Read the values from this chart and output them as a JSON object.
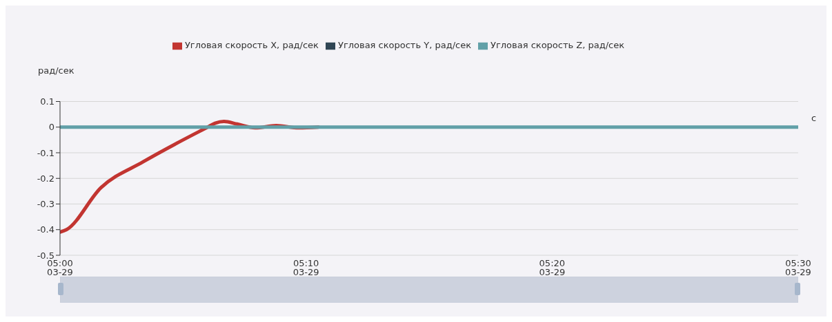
{
  "chart_data": {
    "type": "line",
    "xlabel": "с",
    "ylabel": "рад/сек",
    "x": [
      5,
      5.0044,
      5.0278,
      5.0561,
      5.0833,
      5.1,
      5.105,
      5.1111,
      5.12,
      5.1322,
      5.1464,
      5.1617,
      5.175,
      5.5
    ],
    "series": [
      {
        "name": "Угловая скорость X, рад/сек",
        "color": "#c23531",
        "values": [
          -0.41,
          -0.4,
          -0.236,
          -0.136,
          -0.05,
          0,
          0.015,
          0.022,
          0.012,
          -0.003,
          0.006,
          -0.003,
          0,
          null
        ]
      },
      {
        "name": "Угловая скорость Y, рад/сек",
        "color": "#2f4554",
        "values": [
          null,
          null,
          null,
          null,
          null,
          null,
          null,
          null,
          null,
          null,
          null,
          null,
          null,
          null
        ]
      },
      {
        "name": "Угловая скорость Z, рад/сек",
        "color": "#61a0a8",
        "values": [
          0,
          0,
          0,
          0,
          0,
          0,
          0,
          0,
          0,
          0,
          0,
          0,
          0,
          0
        ]
      }
    ],
    "xlim": [
      5,
      5.5
    ],
    "xticks": [
      {
        "value": 5,
        "label": "05:00"
      },
      {
        "value": 5.1666667,
        "label": "05:10"
      },
      {
        "value": 5.3333333,
        "label": "05:20"
      },
      {
        "value": 5.5,
        "label": "05:30"
      }
    ],
    "annotations": [
      "03-29",
      "03-29",
      "03-29",
      "03-29"
    ],
    "ylim": [
      -0.5,
      0.1
    ],
    "yticks": [
      -0.5,
      -0.4,
      -0.3,
      -0.2,
      -0.1,
      0,
      0.1
    ],
    "grid": "y",
    "legend": "top",
    "marker": "none",
    "line_style": "solid"
  }
}
